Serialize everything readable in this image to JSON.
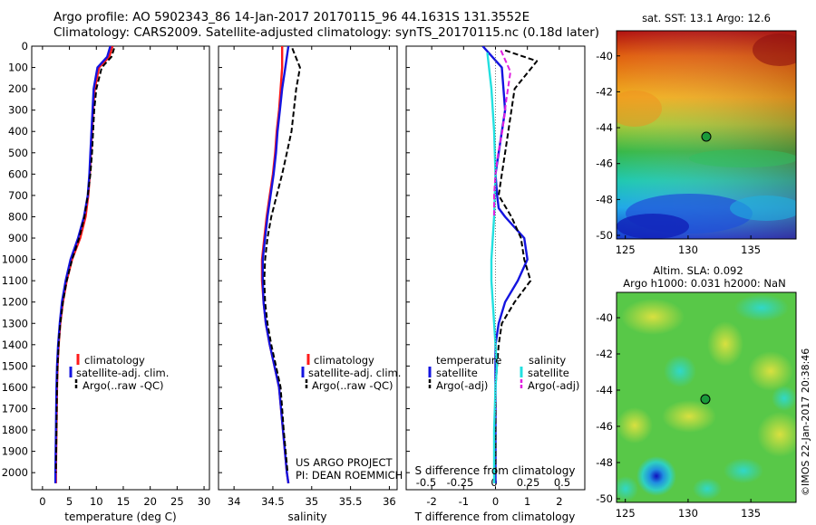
{
  "header": {
    "title_line1": "Argo profile: AO 5902343_86 14-Jan-2017 20170115_96 44.1631S 131.3552E",
    "title_line2": "Climatology: CARS2009. Satellite-adjusted climatology: synTS_20170115.nc (0.18d later)"
  },
  "colors": {
    "climatology": "#ff1a1a",
    "satellite": "#1414e0",
    "argo": "#000000",
    "salinity_satellite": "#22e0e0",
    "salinity_argo": "#e020e0"
  },
  "chart_data": [
    {
      "id": "temperature",
      "type": "line",
      "xlabel": "temperature (deg C)",
      "ylabel": "",
      "xlim": [
        -2,
        31
      ],
      "ylim": [
        2080,
        0
      ],
      "xticks": [
        0,
        5,
        10,
        15,
        20,
        25,
        30
      ],
      "xtick_labels": [
        "0",
        "5",
        "10",
        "15",
        "20",
        "25",
        "30"
      ],
      "yticks": [
        0,
        100,
        200,
        300,
        400,
        500,
        600,
        700,
        800,
        900,
        1000,
        1100,
        1200,
        1300,
        1400,
        1500,
        1600,
        1700,
        1800,
        1900,
        2000
      ],
      "ytick_labels": [
        "0",
        "100",
        "200",
        "300",
        "400",
        "500",
        "600",
        "700",
        "800",
        "900",
        "1000",
        "1100",
        "1200",
        "1300",
        "1400",
        "1500",
        "1600",
        "1700",
        "1800",
        "1900",
        "2000"
      ],
      "legend": [
        "climatology",
        "satellite-adj. clim.",
        "Argo(..raw -QC)"
      ],
      "series": [
        {
          "name": "climatology",
          "style": "solid",
          "color_key": "climatology",
          "x": [
            13.0,
            12.4,
            10.5,
            9.7,
            9.4,
            9.2,
            9.0,
            8.8,
            8.5,
            8.0,
            7.0,
            5.5,
            4.5,
            3.8,
            3.3,
            3.0,
            2.8,
            2.7,
            2.6,
            2.5,
            2.5
          ],
          "y": [
            0,
            50,
            100,
            200,
            300,
            400,
            500,
            600,
            700,
            800,
            900,
            1000,
            1100,
            1200,
            1300,
            1400,
            1500,
            1600,
            1800,
            2000,
            2050
          ]
        },
        {
          "name": "satellite-adj. clim.",
          "style": "solid",
          "color_key": "satellite",
          "x": [
            12.6,
            12.0,
            10.2,
            9.5,
            9.3,
            9.1,
            8.9,
            8.7,
            8.4,
            7.7,
            6.6,
            5.2,
            4.3,
            3.6,
            3.2,
            2.9,
            2.7,
            2.6,
            2.5,
            2.4,
            2.4
          ],
          "y": [
            0,
            50,
            100,
            200,
            300,
            400,
            500,
            600,
            700,
            800,
            900,
            1000,
            1100,
            1200,
            1300,
            1400,
            1500,
            1600,
            1800,
            2000,
            2050
          ]
        },
        {
          "name": "Argo(..raw -QC)",
          "style": "dashed",
          "color_key": "argo",
          "x": [
            13.3,
            12.8,
            11.0,
            10.0,
            9.6,
            9.4,
            9.2,
            8.9,
            8.4,
            7.8,
            6.8,
            5.5,
            4.5,
            3.8,
            3.3,
            3.0,
            2.8,
            2.7,
            2.6,
            2.5
          ],
          "y": [
            10,
            50,
            100,
            200,
            300,
            400,
            500,
            600,
            700,
            800,
            900,
            1000,
            1100,
            1200,
            1300,
            1400,
            1500,
            1600,
            1800,
            2000
          ]
        }
      ]
    },
    {
      "id": "salinity",
      "type": "line",
      "xlabel": "salinity",
      "xlim": [
        33.8,
        36.1
      ],
      "ylim": [
        2080,
        0
      ],
      "xticks": [
        34,
        34.5,
        35,
        35.5,
        36
      ],
      "xtick_labels": [
        "34",
        "34.5",
        "35",
        "35.5",
        "36"
      ],
      "legend": [
        "climatology",
        "satellite-adj. clim.",
        "Argo(..raw -QC)"
      ],
      "annotation_line1": "US ARGO PROJECT",
      "annotation_line2": "PI: DEAN ROEMMICH",
      "series": [
        {
          "name": "climatology",
          "style": "solid",
          "color_key": "climatology",
          "x": [
            34.62,
            34.62,
            34.6,
            34.58,
            34.55,
            34.53,
            34.5,
            34.46,
            34.42,
            34.39,
            34.36,
            34.36,
            34.38,
            34.41,
            34.46,
            34.52,
            34.58,
            34.63,
            34.68,
            34.7
          ],
          "y": [
            0,
            100,
            200,
            300,
            400,
            500,
            600,
            700,
            800,
            900,
            1000,
            1100,
            1200,
            1300,
            1400,
            1500,
            1600,
            1800,
            2000,
            2050
          ]
        },
        {
          "name": "satellite-adj. clim.",
          "style": "solid",
          "color_key": "satellite",
          "x": [
            34.7,
            34.66,
            34.62,
            34.59,
            34.56,
            34.54,
            34.51,
            34.47,
            34.43,
            34.4,
            34.37,
            34.37,
            34.38,
            34.41,
            34.46,
            34.52,
            34.58,
            34.63,
            34.68,
            34.7
          ],
          "y": [
            0,
            100,
            200,
            300,
            400,
            500,
            600,
            700,
            800,
            900,
            1000,
            1100,
            1200,
            1300,
            1400,
            1500,
            1600,
            1800,
            2000,
            2050
          ]
        },
        {
          "name": "Argo(..raw -QC)",
          "style": "dashed",
          "color_key": "argo",
          "x": [
            34.75,
            34.85,
            34.8,
            34.77,
            34.74,
            34.68,
            34.62,
            34.55,
            34.48,
            34.43,
            34.4,
            34.39,
            34.4,
            34.43,
            34.48,
            34.54,
            34.6,
            34.64,
            34.69
          ],
          "y": [
            10,
            100,
            200,
            300,
            400,
            500,
            600,
            700,
            800,
            900,
            1000,
            1100,
            1200,
            1300,
            1400,
            1500,
            1600,
            1800,
            2000
          ]
        }
      ]
    },
    {
      "id": "difference",
      "type": "line",
      "xlabel": "T difference from climatology",
      "xlabel_top": "S difference from climatology",
      "xlim": [
        -2.8,
        2.8
      ],
      "ylim": [
        2080,
        0
      ],
      "xticks": [
        -2,
        -1,
        0,
        1,
        2
      ],
      "xtick_labels": [
        "-2",
        "-1",
        "0",
        "1",
        "2"
      ],
      "xticks_top": [
        -0.5,
        -0.25,
        0,
        0.25,
        0.5
      ],
      "xtick_labels_top": [
        "-0.5",
        "-0.25",
        "0",
        "0.25",
        "0.5"
      ],
      "legend_temperature_title": "temperature",
      "legend_salinity_title": "salinity",
      "legend_temperature": [
        "satellite",
        "Argo(-adj)"
      ],
      "legend_salinity": [
        "satellite",
        "Argo(-adj)"
      ],
      "series": [
        {
          "name": "temperature satellite",
          "style": "solid",
          "color_key": "satellite",
          "x": [
            -0.4,
            0.2,
            0.3,
            0.1,
            0.0,
            0.05,
            0.1,
            0.3,
            0.9,
            1.0,
            0.7,
            0.3,
            0.1,
            0.0,
            0.0,
            0.0,
            0.0,
            0.0
          ],
          "y": [
            0,
            100,
            300,
            500,
            600,
            700,
            760,
            800,
            900,
            1000,
            1100,
            1200,
            1300,
            1400,
            1500,
            1700,
            1900,
            2050
          ]
        },
        {
          "name": "temperature Argo(-adj)",
          "style": "dashed",
          "color_key": "argo",
          "x": [
            0.3,
            1.3,
            0.6,
            0.5,
            0.4,
            0.3,
            0.2,
            0.1,
            0.5,
            0.8,
            0.9,
            1.1,
            0.6,
            0.2,
            0.1,
            0.0,
            0.0,
            0.0
          ],
          "y": [
            20,
            70,
            200,
            300,
            400,
            500,
            600,
            700,
            800,
            900,
            1000,
            1100,
            1200,
            1300,
            1400,
            1600,
            1800,
            2000
          ]
        },
        {
          "name": "salinity satellite",
          "style": "solid",
          "color_key": "salinity_satellite",
          "x": [
            -0.05,
            -0.02,
            0.0,
            0.01,
            0.0,
            -0.01,
            -0.02,
            -0.02,
            -0.01,
            0.0,
            0.01,
            0.02,
            0.01,
            0.0,
            0.0
          ],
          "y": [
            30,
            200,
            400,
            600,
            800,
            900,
            1000,
            1100,
            1200,
            1300,
            1400,
            1500,
            1600,
            1800,
            2050
          ]
        },
        {
          "name": "salinity Argo(-adj)",
          "style": "dashed",
          "color_key": "salinity_argo",
          "x": [
            0.05,
            0.12,
            0.09,
            0.06,
            0.03,
            0.01,
            0.0,
            0.0
          ],
          "y": [
            20,
            120,
            250,
            400,
            500,
            600,
            700,
            800
          ]
        }
      ]
    }
  ],
  "maps": {
    "sst": {
      "title": "sat. SST: 13.1  Argo: 12.6",
      "xticks": [
        "125",
        "130",
        "135"
      ],
      "yticks": [
        "-40",
        "-42",
        "-44",
        "-46",
        "-48",
        "-50"
      ]
    },
    "sla": {
      "title_line1": "Altim. SLA: 0.092",
      "title_line2": "Argo h1000: 0.031  h2000: NaN",
      "xticks": [
        "125",
        "130",
        "135"
      ],
      "yticks": [
        "-40",
        "-42",
        "-44",
        "-46",
        "-48",
        "-50"
      ]
    },
    "float_marker": {
      "lon": 131.3552,
      "lat": -44.1631
    }
  },
  "credit": "©IMOS 22-Jan-2017 20:38:46"
}
